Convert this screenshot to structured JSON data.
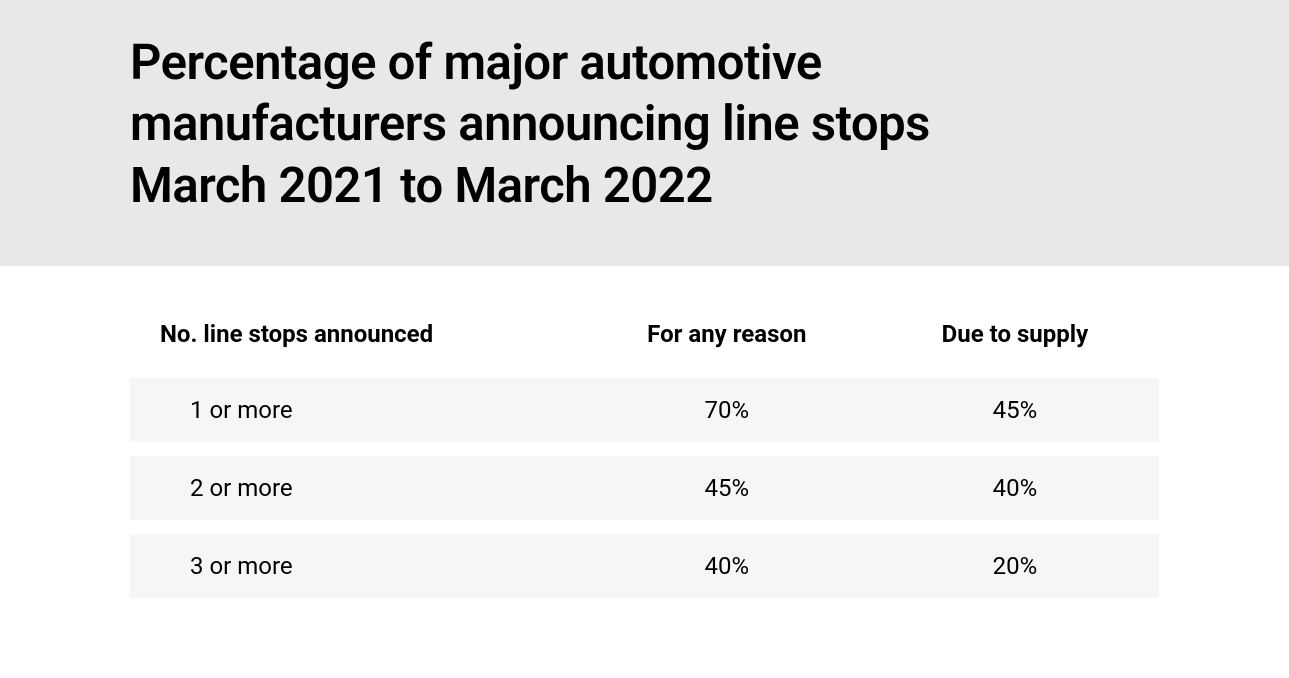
{
  "title": "Percentage of major automotive manufacturers announcing line stops March 2021 to March 2022",
  "table": {
    "columns": [
      "No. line stops announced",
      "For any reason",
      "Due to supply"
    ],
    "rows": [
      [
        "1 or more",
        "70%",
        "45%"
      ],
      [
        "2 or more",
        "45%",
        "40%"
      ],
      [
        "3 or more",
        "40%",
        "20%"
      ]
    ],
    "header_bg": "#e8e8e8",
    "row_bg": "#f7f6f5",
    "page_bg": "#ffffff",
    "text_color": "#000000",
    "title_fontsize": 49,
    "header_fontsize": 24,
    "cell_fontsize": 24,
    "col_widths_pct": [
      44,
      28,
      28
    ],
    "col_align": [
      "left",
      "center",
      "center"
    ]
  }
}
